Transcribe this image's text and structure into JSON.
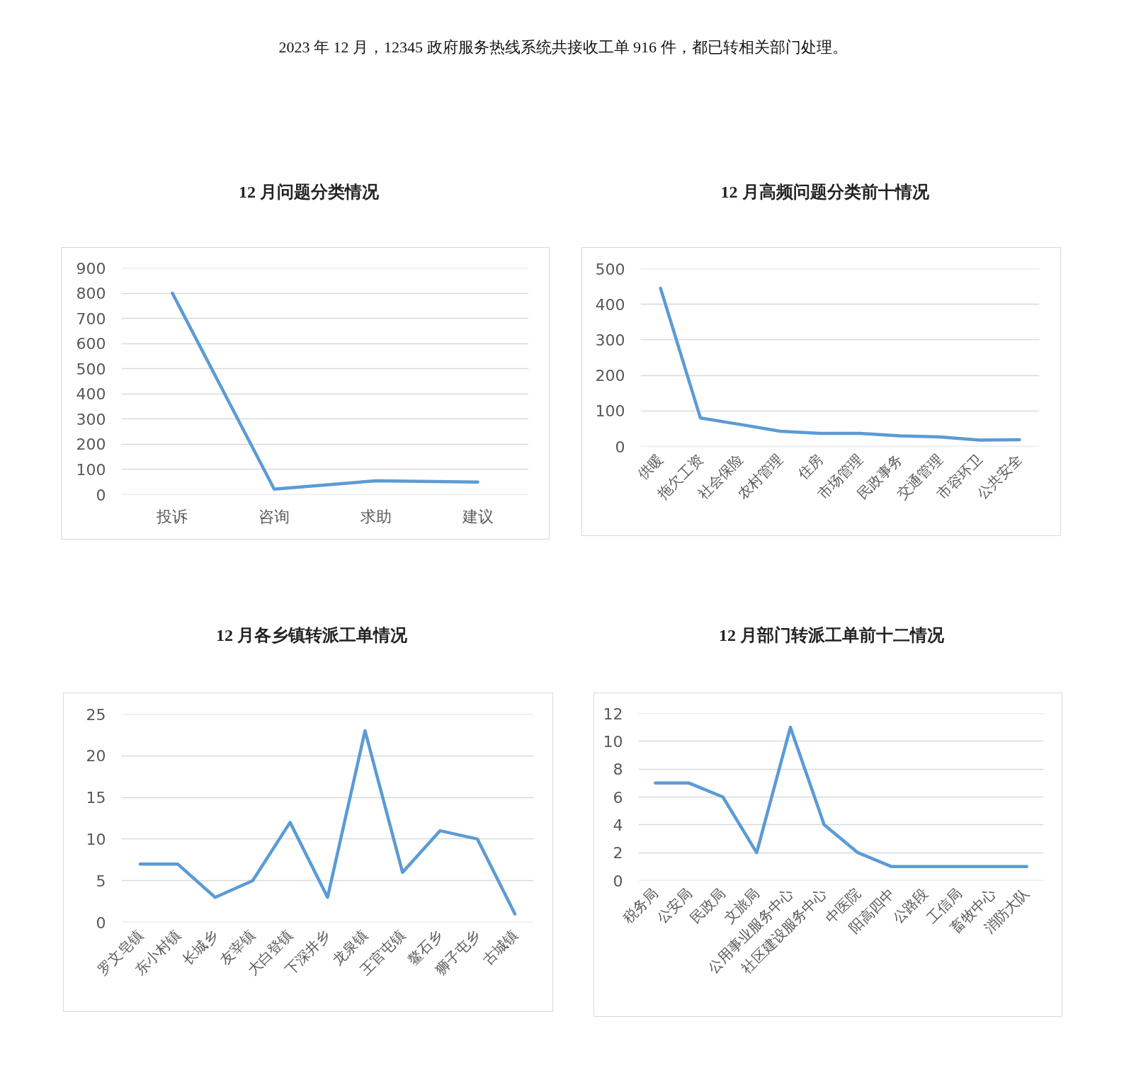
{
  "chart_data": [
    {
      "type": "line",
      "title": "12 月问题分类情况",
      "annotations": [
        "2023 年 12 月，12345 政府服务热线系统共接收工单 916 件，都已转相关部门处理。"
      ],
      "categories": [
        "投诉",
        "咨询",
        "求助",
        "建议"
      ],
      "series": [
        {
          "color": "#5b9bd5",
          "values": [
            800,
            22,
            55,
            50
          ]
        }
      ],
      "ylim": [
        0,
        900
      ],
      "yticks": [
        0,
        100,
        200,
        300,
        400,
        500,
        600,
        700,
        800,
        900
      ],
      "grid": "y"
    },
    {
      "type": "line",
      "title": "12 月高频问题分类前十情况",
      "categories": [
        "供暖",
        "拖欠工资",
        "社会保险",
        "农村管理",
        "住房",
        "市场管理",
        "民政事务",
        "交通管理",
        "市容环卫",
        "公共安全"
      ],
      "series": [
        {
          "color": "#5b9bd5",
          "values": [
            445,
            80,
            62,
            43,
            37,
            37,
            30,
            27,
            18,
            19
          ]
        }
      ],
      "ylim": [
        0,
        500
      ],
      "yticks": [
        0,
        100,
        200,
        300,
        400,
        500
      ],
      "grid": "y"
    },
    {
      "type": "line",
      "title": "12 月各乡镇转派工单情况",
      "categories": [
        "罗文皂镇",
        "东小村镇",
        "长城乡",
        "友宰镇",
        "大白登镇",
        "下深井乡",
        "龙泉镇",
        "王官屯镇",
        "鳌石乡",
        "狮子屯乡",
        "古城镇"
      ],
      "series": [
        {
          "color": "#5b9bd5",
          "values": [
            7,
            7,
            3,
            5,
            12,
            3,
            23,
            6,
            11,
            10,
            1
          ]
        }
      ],
      "ylim": [
        0,
        25
      ],
      "yticks": [
        0,
        5,
        10,
        15,
        20,
        25
      ],
      "grid": "y"
    },
    {
      "type": "line",
      "title": "12 月部门转派工单前十二情况",
      "categories": [
        "税务局",
        "公安局",
        "民政局",
        "文旅局",
        "公用事业服务中心",
        "社区建设服务中心",
        "中医院",
        "阳高四中",
        "公路段",
        "工信局",
        "畜牧中心",
        "消防大队"
      ],
      "series": [
        {
          "color": "#5b9bd5",
          "values": [
            7,
            7,
            6,
            2,
            11,
            4,
            2,
            1,
            1,
            1,
            1,
            1
          ]
        }
      ],
      "ylim": [
        0,
        12
      ],
      "yticks": [
        0,
        2,
        4,
        6,
        8,
        10,
        12
      ],
      "grid": "y"
    }
  ]
}
